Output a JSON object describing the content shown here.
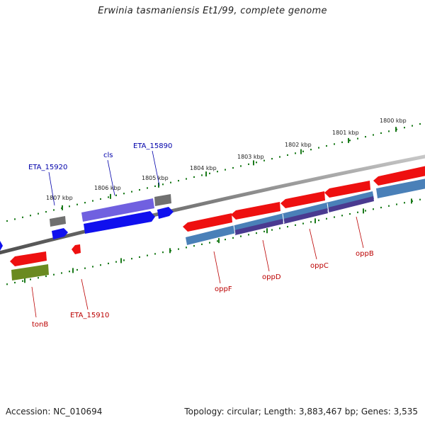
{
  "title": "Erwinia tasmaniensis Et1/99, complete genome",
  "footer": {
    "accession": "Accession: NC_010694",
    "topology": "Topology: circular; Length: 3,883,467 bp; Genes: 3,535"
  },
  "colors": {
    "forward_cds": "#1010ee",
    "forward_cds_light": "#7060e0",
    "reverse_cds": "#ee1010",
    "pseudo_grey": "#707070",
    "operon_blue": "#4a80b8",
    "operon_purple": "#4a3a90",
    "tonb_green": "#6a8a20",
    "backbone": "#888888",
    "tick_green": "#1a7a1a",
    "label_blue": "#0000aa",
    "label_red": "#bb0000"
  },
  "scale": {
    "outer": [
      "1800 kbp",
      "1801 kbp",
      "1802 kbp",
      "1803 kbp",
      "1804 kbp",
      "1805 kbp",
      "1806 kbp",
      "1807 kbp"
    ]
  },
  "genes": {
    "forward": [
      "ETA_15920",
      "cls",
      "ETA_15890"
    ],
    "reverse": [
      "tonB",
      "ETA_15910",
      "oppF",
      "oppD",
      "oppC",
      "oppB"
    ]
  }
}
